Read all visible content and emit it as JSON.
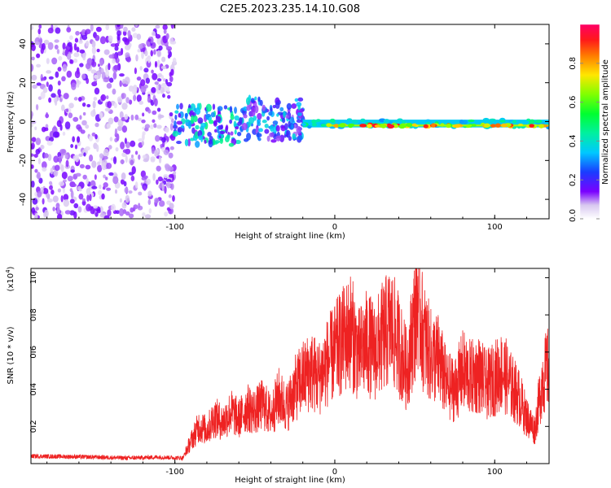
{
  "title": "C2E5.2023.235.14.10.G08",
  "chart_data": [
    {
      "type": "heatmap",
      "xlabel": "Height of straight line (km)",
      "ylabel": "Frequency (Hz)",
      "xlim": [
        -190,
        134
      ],
      "ylim": [
        -50,
        50
      ],
      "x_ticks": [
        -100,
        0,
        100
      ],
      "x_tick_labels": [
        "-100",
        "0",
        "100"
      ],
      "y_ticks": [
        -40,
        -20,
        0,
        20,
        40
      ],
      "y_tick_labels": [
        "-40",
        "-20",
        "0",
        "20",
        "40"
      ],
      "colorbar": {
        "label": "Normalized spectral amplitude",
        "range": [
          0,
          1
        ],
        "ticks": [
          0.0,
          0.2,
          0.4,
          0.6,
          0.8
        ],
        "tick_labels": [
          "0.0",
          "0.2",
          "0.4",
          "0.6",
          "0.8"
        ]
      },
      "regions": [
        {
          "x_range": [
            -190,
            -100
          ],
          "freq_range": [
            -50,
            50
          ],
          "amplitude": 0.1
        },
        {
          "x_range": [
            -100,
            -60
          ],
          "freq_range": [
            -12,
            8
          ],
          "amplitude": 0.3
        },
        {
          "x_range": [
            -60,
            -20
          ],
          "freq_range": [
            -10,
            12
          ],
          "amplitude": 0.25
        },
        {
          "x_range": [
            -20,
            134
          ],
          "freq_range": [
            -3,
            1
          ],
          "amplitude": 0.5
        },
        {
          "x_range": [
            -5,
            134
          ],
          "freq_range": [
            -2.5,
            -1.5
          ],
          "amplitude": 0.95
        }
      ]
    },
    {
      "type": "line",
      "xlabel": "Height of straight line (km)",
      "ylabel": "SNR (10 * v/v)",
      "scale_label": "(x10",
      "scale_exp": "4",
      "xlim": [
        -190,
        134
      ],
      "ylim": [
        0,
        10500
      ],
      "x_ticks": [
        -100,
        0,
        100
      ],
      "x_tick_labels": [
        "-100",
        "0",
        "100"
      ],
      "y_ticks": [
        2000,
        4000,
        6000,
        8000,
        10000
      ],
      "y_tick_labels": [
        "0.2",
        "0.4",
        "0.6",
        "0.8",
        "1.0"
      ],
      "color": "#ee2222",
      "series": [
        {
          "x": [
            -190,
            -170,
            -150,
            -130,
            -110,
            -95,
            -90,
            -85,
            -80,
            -75,
            -70,
            -65,
            -60,
            -55,
            -50,
            -45,
            -40,
            -35,
            -30,
            -25,
            -20,
            -15,
            -10,
            -5,
            0,
            5,
            10,
            15,
            20,
            25,
            30,
            35,
            40,
            45,
            50,
            52,
            55,
            60,
            65,
            70,
            75,
            80,
            85,
            90,
            95,
            100,
            105,
            110,
            115,
            120,
            125,
            130,
            134
          ],
          "y": [
            400,
            380,
            350,
            300,
            350,
            300,
            1200,
            2000,
            1800,
            2500,
            2200,
            2800,
            2400,
            3000,
            2800,
            3200,
            2600,
            3600,
            3000,
            4000,
            4600,
            5000,
            4600,
            5400,
            6000,
            6600,
            7200,
            5800,
            6500,
            6000,
            6800,
            7400,
            6400,
            5000,
            7800,
            9000,
            7000,
            5800,
            5600,
            4200,
            4000,
            5000,
            4600,
            4800,
            4200,
            4600,
            5000,
            4200,
            3600,
            2500,
            1800,
            4600,
            5200
          ]
        }
      ]
    }
  ]
}
